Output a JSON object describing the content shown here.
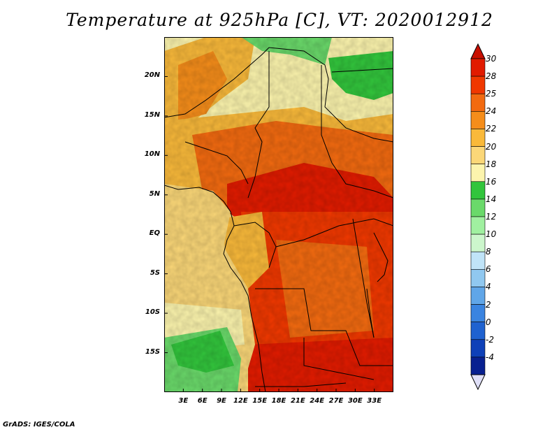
{
  "title": "Temperature at 925hPa [C], VT: 2020012912",
  "credit": "GrADS: IGES/COLA",
  "map": {
    "projection": "lat-lon",
    "lon_range": [
      0,
      36
    ],
    "lat_range": [
      -20,
      25
    ],
    "lat_labels": [
      "20N",
      "15N",
      "10N",
      "5N",
      "EQ",
      "5S",
      "10S",
      "15S"
    ],
    "lat_values": [
      20,
      15,
      10,
      5,
      0,
      -5,
      -10,
      -15
    ],
    "lon_labels": [
      "3E",
      "6E",
      "9E",
      "12E",
      "15E",
      "18E",
      "21E",
      "24E",
      "27E",
      "30E",
      "33E"
    ],
    "lon_values": [
      3,
      6,
      9,
      12,
      15,
      18,
      21,
      24,
      27,
      30,
      33
    ]
  },
  "colorbar": {
    "labels": [
      "30",
      "28",
      "25",
      "24",
      "22",
      "20",
      "18",
      "16",
      "14",
      "12",
      "10",
      "8",
      "6",
      "4",
      "2",
      "0",
      "-2",
      "-4"
    ],
    "colors": [
      "#e11b00",
      "#f03800",
      "#f26a10",
      "#f58d1a",
      "#f9b93a",
      "#fbd778",
      "#fcf4ad",
      "#32c53c",
      "#6ad96a",
      "#a0f0a0",
      "#ccf6cc",
      "#c0e4f8",
      "#90c8f0",
      "#60a6e8",
      "#3a84e0",
      "#1f62d0",
      "#0e40b8",
      "#082090"
    ],
    "top_arrow_color": "#c80f00",
    "bottom_arrow_color": "#e0e0f8"
  }
}
